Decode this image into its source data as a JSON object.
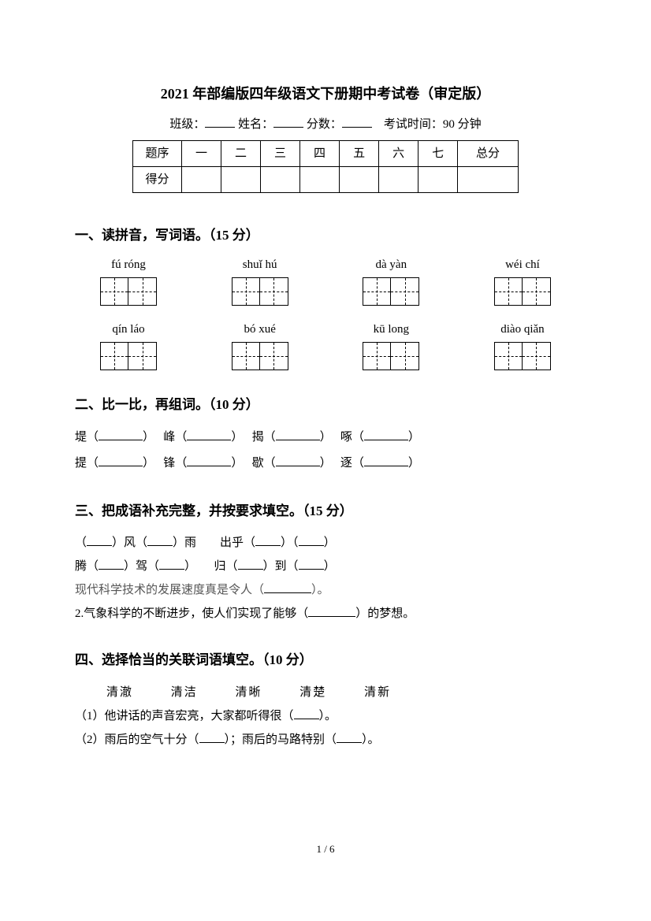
{
  "title": "2021 年部编版四年级语文下册期中考试卷（审定版）",
  "info": {
    "class_label": "班级：",
    "name_label": "姓名：",
    "score_label": "分数：",
    "time_label": "考试时间：90 分钟"
  },
  "score_table": {
    "header_row": [
      "题序",
      "一",
      "二",
      "三",
      "四",
      "五",
      "六",
      "七",
      "总分"
    ],
    "score_row_label": "得分"
  },
  "section1": {
    "title": "一、读拼音，写词语。（15 分）",
    "row1": [
      "fú róng",
      "shuǐ hú",
      "dà yàn",
      "wéi chí"
    ],
    "row2": [
      "qín láo",
      "bó xué",
      "kū long",
      "diào qiǎn"
    ],
    "boxes_per_group": 2
  },
  "section2": {
    "title": "二、比一比，再组词。（10 分）",
    "row1": [
      "堤",
      "峰",
      "揭",
      "啄"
    ],
    "row2": [
      "提",
      "锋",
      "歇",
      "逐"
    ]
  },
  "section3": {
    "title": "三、把成语补充完整，并按要求填空。（15 分）",
    "line1": "（____）风（____）雨　出乎（____）（____）",
    "line2": "腾（____）驾（____）　归（____）到（____）",
    "line3_prefix": "现代科学技术的发展速度真是令人（",
    "line3_suffix": "）。",
    "line4_prefix": "2.气象科学的不断进步，使人们实现了能够（",
    "line4_suffix": "）的梦想。"
  },
  "section4": {
    "title": "四、选择恰当的关联词语填空。（10 分）",
    "words": [
      "清澈",
      "清洁",
      "清晰",
      "清楚",
      "清新"
    ],
    "line1_prefix": "（1）他讲话的声音宏亮，大家都听得很（",
    "line1_suffix": "）。",
    "line2_prefix": "（2）雨后的空气十分（",
    "line2_mid": "）；雨后的马路特别（",
    "line2_suffix": "）。"
  },
  "page_number": "1 / 6",
  "colors": {
    "text": "#000000",
    "gray": "#555555",
    "background": "#ffffff"
  }
}
